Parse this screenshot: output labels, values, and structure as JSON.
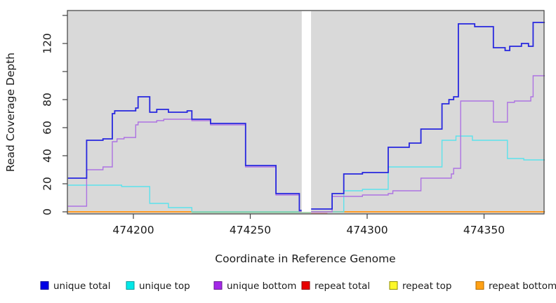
{
  "chart_data": {
    "type": "line",
    "subtype": "step-coverage",
    "title": "",
    "xlabel": "Coordinate in Reference Genome",
    "ylabel": "Read Coverage Depth",
    "xlim": [
      474172,
      474376
    ],
    "ylim": [
      0,
      140
    ],
    "x_ticks": [
      474200,
      474250,
      474300,
      474350
    ],
    "y_ticks": [
      0,
      20,
      40,
      60,
      80,
      100,
      120,
      140
    ],
    "y_ticks_labeled": [
      0,
      20,
      40,
      60,
      80,
      120
    ],
    "grid": false,
    "plot_bg": "#d9d9d9",
    "data_gap_x": [
      474272,
      474276
    ],
    "series": [
      {
        "name": "repeat total",
        "color": "#e62020",
        "width": 1.5,
        "chunks": [
          [
            [
              474172,
              474272,
              0
            ]
          ],
          [
            [
              474276,
              474376,
              0
            ]
          ]
        ]
      },
      {
        "name": "repeat top",
        "color": "#f2e62a",
        "width": 1.5,
        "chunks": [
          [
            [
              474172,
              474272,
              0
            ]
          ],
          [
            [
              474276,
              474376,
              0
            ]
          ]
        ]
      },
      {
        "name": "repeat bottom",
        "color": "#ff9b25",
        "width": 2,
        "chunks": [
          [
            [
              474172,
              474272,
              0
            ]
          ],
          [
            [
              474283,
              474376,
              0
            ]
          ]
        ]
      },
      {
        "name": "unique top",
        "color": "#5ce2ec",
        "width": 1.4,
        "chunks": [
          [
            [
              474172,
              474195,
              19
            ],
            [
              474195,
              474207,
              18
            ],
            [
              474207,
              474215,
              6
            ],
            [
              474215,
              474225,
              3
            ],
            [
              474225,
              474272,
              0
            ]
          ],
          [
            [
              474276,
              474290,
              0
            ],
            [
              474290,
              474298,
              15
            ],
            [
              474298,
              474309,
              16
            ],
            [
              474309,
              474332,
              32
            ],
            [
              474332,
              474338,
              51
            ],
            [
              474338,
              474345,
              54
            ],
            [
              474345,
              474360,
              51
            ],
            [
              474360,
              474367,
              38
            ],
            [
              474367,
              474376,
              37
            ]
          ]
        ]
      },
      {
        "name": "unique bottom",
        "color": "#ad72e2",
        "width": 1.4,
        "chunks": [
          [
            [
              474172,
              474180,
              4
            ],
            [
              474180,
              474187,
              30
            ],
            [
              474187,
              474191,
              32
            ],
            [
              474191,
              474193,
              50
            ],
            [
              474193,
              474196,
              52
            ],
            [
              474196,
              474201,
              53
            ],
            [
              474201,
              474202,
              62
            ],
            [
              474202,
              474210,
              64
            ],
            [
              474210,
              474213,
              65
            ],
            [
              474213,
              474225,
              66
            ],
            [
              474225,
              474233,
              65
            ],
            [
              474233,
              474248,
              62
            ],
            [
              474248,
              474261,
              32
            ],
            [
              474261,
              474271,
              12
            ],
            [
              474271,
              474272,
              0
            ]
          ],
          [
            [
              474276,
              474285,
              0
            ],
            [
              474285,
              474298,
              11
            ],
            [
              474298,
              474309,
              12
            ],
            [
              474309,
              474311,
              13
            ],
            [
              474311,
              474323,
              15
            ],
            [
              474323,
              474336,
              24
            ],
            [
              474336,
              474337,
              27
            ],
            [
              474337,
              474340,
              31
            ],
            [
              474340,
              474354,
              79
            ],
            [
              474354,
              474360,
              64
            ],
            [
              474360,
              474363,
              78
            ],
            [
              474363,
              474370,
              79
            ],
            [
              474370,
              474371,
              82
            ],
            [
              474371,
              474376,
              97
            ]
          ]
        ]
      },
      {
        "name": "unique total",
        "color": "#2727df",
        "width": 1.8,
        "chunks": [
          [
            [
              474172,
              474180,
              24
            ],
            [
              474180,
              474187,
              51
            ],
            [
              474187,
              474191,
              52
            ],
            [
              474191,
              474192,
              70
            ],
            [
              474192,
              474201,
              72
            ],
            [
              474201,
              474202,
              74
            ],
            [
              474202,
              474207,
              82
            ],
            [
              474207,
              474210,
              71
            ],
            [
              474210,
              474215,
              73
            ],
            [
              474215,
              474223,
              71
            ],
            [
              474223,
              474225,
              72
            ],
            [
              474225,
              474233,
              66
            ],
            [
              474233,
              474248,
              63
            ],
            [
              474248,
              474261,
              33
            ],
            [
              474261,
              474271,
              13
            ],
            [
              474271,
              474272,
              1
            ]
          ],
          [
            [
              474276,
              474285,
              2
            ],
            [
              474285,
              474290,
              13
            ],
            [
              474290,
              474298,
              27
            ],
            [
              474298,
              474309,
              28
            ],
            [
              474309,
              474318,
              46
            ],
            [
              474318,
              474323,
              49
            ],
            [
              474323,
              474332,
              59
            ],
            [
              474332,
              474335,
              77
            ],
            [
              474335,
              474337,
              80
            ],
            [
              474337,
              474339,
              82
            ],
            [
              474339,
              474346,
              134
            ],
            [
              474346,
              474354,
              132
            ],
            [
              474354,
              474359,
              117
            ],
            [
              474359,
              474361,
              115
            ],
            [
              474361,
              474366,
              118
            ],
            [
              474366,
              474369,
              120
            ],
            [
              474369,
              474371,
              118
            ],
            [
              474371,
              474376,
              135
            ]
          ]
        ]
      }
    ],
    "overlays": [
      {
        "name": "cyan-over-orange-blend",
        "color": "#96cc9e",
        "value": 0,
        "x": [
          474225,
          474276
        ],
        "width": 1.6
      },
      {
        "name": "repeat-total-visible-sliver",
        "color": "#ea8a96",
        "value": -1,
        "x": [
          474276,
          474283
        ],
        "width": 1.4
      }
    ],
    "legend": [
      {
        "label": "unique total",
        "fill": "#0000e6",
        "border": "#000099"
      },
      {
        "label": "unique top",
        "fill": "#00e8e8",
        "border": "#009999"
      },
      {
        "label": "unique bottom",
        "fill": "#a428e8",
        "border": "#66188f"
      },
      {
        "label": "repeat total",
        "fill": "#e80000",
        "border": "#8f0000"
      },
      {
        "label": "repeat top",
        "fill": "#fdf82a",
        "border": "#8f8f00"
      },
      {
        "label": "repeat bottom",
        "fill": "#ffa115",
        "border": "#b36b00"
      }
    ],
    "legend_position": "bottom",
    "axis_color": "#404040",
    "gap_color": "#ffffff"
  }
}
